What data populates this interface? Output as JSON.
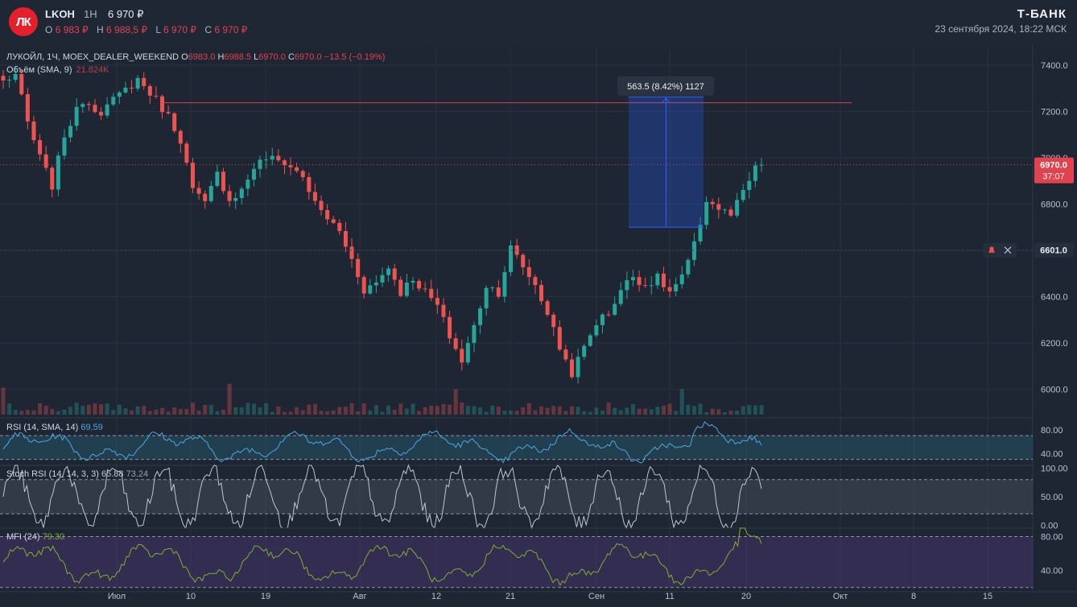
{
  "header": {
    "logo_text": "ЛК",
    "ticker": "LKOH",
    "timeframe": "1H",
    "last_price": "6 970 ₽",
    "ohlc": [
      {
        "label": "O",
        "value": "6 983 ₽"
      },
      {
        "label": "H",
        "value": "6 988,5 ₽"
      },
      {
        "label": "L",
        "value": "6 970 ₽"
      },
      {
        "label": "C",
        "value": "6 970 ₽"
      }
    ],
    "brand": "Т-БАНК",
    "datetime": "23 сентября 2024, 18:22 МСК"
  },
  "chart_legend": {
    "symbol": "ЛУКОЙЛ, 1Ч, MOEX_DEALER_WEEKEND",
    "o_label": "O",
    "o": "6983.0",
    "h_label": "H",
    "h": "6988.5",
    "l_label": "L",
    "l": "6970.0",
    "c_label": "C",
    "c": "6970.0",
    "change": "−13.5 (−0.19%)",
    "volume_label": "Объём (SMA, 9)",
    "volume_value": "21.824K"
  },
  "colors": {
    "up": "#26a69a",
    "down": "#ef5350",
    "rsi": "#4aa8e0",
    "stoch": "#c0c4cc",
    "mfi": "#7fae2e",
    "measure": "#2962ff",
    "price_tag": "#e2414e"
  },
  "chart_data": [
    {
      "type": "candlestick",
      "title": "ЛУКОЙЛ, 1Ч, MOEX_DEALER_WEEKEND",
      "ylim": [
        5880,
        7480
      ],
      "y_ticks": [
        "7400.0",
        "7200.0",
        "7000.0",
        "6800.0",
        "6600.0",
        "6400.0",
        "6200.0",
        "6000.0"
      ],
      "y_tick_values": [
        7400,
        7200,
        7000,
        6800,
        6600,
        6400,
        6200,
        6000
      ],
      "x_labels": [
        "Июл",
        "10",
        "19",
        "Авг",
        "12",
        "21",
        "Сен",
        "11",
        "20",
        "Окт",
        "8",
        "15"
      ],
      "close_path": {
        "dates": [
          "Июл",
          "10",
          "19",
          "Авг",
          "12",
          "21",
          "Сен",
          "11",
          "20"
        ],
        "keypoints": [
          [
            0,
            7330
          ],
          [
            2,
            7360
          ],
          [
            4,
            7150
          ],
          [
            6,
            7000
          ],
          [
            8,
            6880
          ],
          [
            10,
            7100
          ],
          [
            13,
            7250
          ],
          [
            16,
            7200
          ],
          [
            19,
            7270
          ],
          [
            22,
            7340
          ],
          [
            25,
            7250
          ],
          [
            27,
            7180
          ],
          [
            29,
            7080
          ],
          [
            31,
            6860
          ],
          [
            33,
            6800
          ],
          [
            35,
            6930
          ],
          [
            37,
            6820
          ],
          [
            39,
            6860
          ],
          [
            41,
            6960
          ],
          [
            43,
            7000
          ],
          [
            46,
            6980
          ],
          [
            49,
            6920
          ],
          [
            51,
            6800
          ],
          [
            53,
            6740
          ],
          [
            55,
            6680
          ],
          [
            57,
            6560
          ],
          [
            59,
            6430
          ],
          [
            61,
            6460
          ],
          [
            63,
            6530
          ],
          [
            65,
            6420
          ],
          [
            67,
            6480
          ],
          [
            69,
            6420
          ],
          [
            71,
            6360
          ],
          [
            73,
            6230
          ],
          [
            75,
            6120
          ],
          [
            77,
            6270
          ],
          [
            79,
            6450
          ],
          [
            81,
            6420
          ],
          [
            83,
            6610
          ],
          [
            85,
            6530
          ],
          [
            87,
            6450
          ],
          [
            89,
            6330
          ],
          [
            91,
            6180
          ],
          [
            93,
            6070
          ],
          [
            95,
            6180
          ],
          [
            97,
            6290
          ],
          [
            99,
            6330
          ],
          [
            101,
            6430
          ],
          [
            103,
            6490
          ],
          [
            105,
            6450
          ],
          [
            107,
            6480
          ],
          [
            109,
            6420
          ],
          [
            111,
            6480
          ],
          [
            113,
            6620
          ],
          [
            115,
            6820
          ],
          [
            117,
            6780
          ],
          [
            119,
            6750
          ],
          [
            121,
            6850
          ],
          [
            123,
            6950
          ],
          [
            124,
            6970
          ]
        ],
        "count": 125
      },
      "last_price": 6970.0,
      "last_price_label": "6970.0",
      "countdown": "37:07",
      "alert_price": 6601.0,
      "alert_price_label": "6601.0",
      "horizontal_line": 7238,
      "measure": {
        "from": 6700,
        "to": 7263,
        "label": "563.5 (8.42%) 1127"
      }
    },
    {
      "type": "line",
      "title": "RSI (14, SMA, 14)",
      "value": "69.59",
      "ylim": [
        20,
        100
      ],
      "bands": [
        30,
        70
      ],
      "y_ticks": [
        "80.00",
        "40.00"
      ]
    },
    {
      "type": "line",
      "title": "Stoch RSI (14, 14, 3, 3)",
      "values_shown": [
        "65.88",
        "73.24"
      ],
      "ylim": [
        -5,
        105
      ],
      "bands": [
        20,
        80
      ],
      "y_ticks": [
        "100.00",
        "50.00",
        "0.00"
      ]
    },
    {
      "type": "line",
      "title": "MFI (24)",
      "value": "79.30",
      "ylim": [
        15,
        90
      ],
      "bands": [
        20,
        80
      ],
      "y_ticks": [
        "80.00",
        "40.00"
      ]
    }
  ]
}
